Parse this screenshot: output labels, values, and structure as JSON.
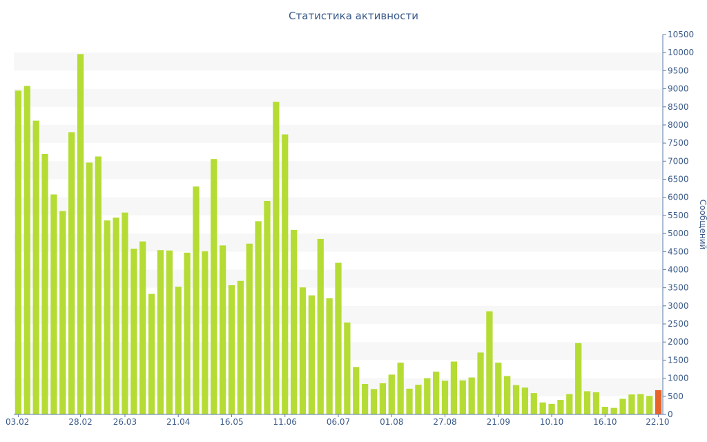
{
  "chart_data": {
    "type": "bar",
    "title": "Статистика активности",
    "ylabel": "Сообщений",
    "ylim": [
      0,
      10500
    ],
    "ytick_step": 500,
    "y_axis_side": "right",
    "grid": "alternating-bands",
    "x_tick_labels": [
      "03.02",
      "28.02",
      "26.03",
      "21.04",
      "16.05",
      "11.06",
      "06.07",
      "01.08",
      "27.08",
      "21.09",
      "10.10",
      "16.10",
      "22.10"
    ],
    "x_tick_positions": [
      0,
      7,
      12,
      18,
      24,
      30,
      36,
      42,
      48,
      54,
      60,
      66,
      72
    ],
    "series_colors": {
      "messages": "#b5dc34",
      "current": "#e8632a"
    },
    "values": [
      8950,
      9080,
      8120,
      7200,
      6080,
      5620,
      7800,
      9960,
      6960,
      7130,
      5360,
      5440,
      5580,
      4580,
      4780,
      3330,
      4540,
      4530,
      3530,
      4470,
      6300,
      4510,
      7060,
      4670,
      3570,
      3690,
      4720,
      5340,
      5900,
      8640,
      7740,
      5100,
      3510,
      3290,
      4850,
      3210,
      4190,
      2540,
      1310,
      840,
      700,
      860,
      1100,
      1430,
      710,
      820,
      1000,
      1180,
      930,
      1460,
      940,
      1020,
      1710,
      2850,
      1430,
      1060,
      810,
      740,
      590,
      330,
      290,
      400,
      560,
      1970,
      640,
      610,
      210,
      180,
      430,
      550,
      560,
      510,
      670
    ],
    "highlight_last": true
  }
}
